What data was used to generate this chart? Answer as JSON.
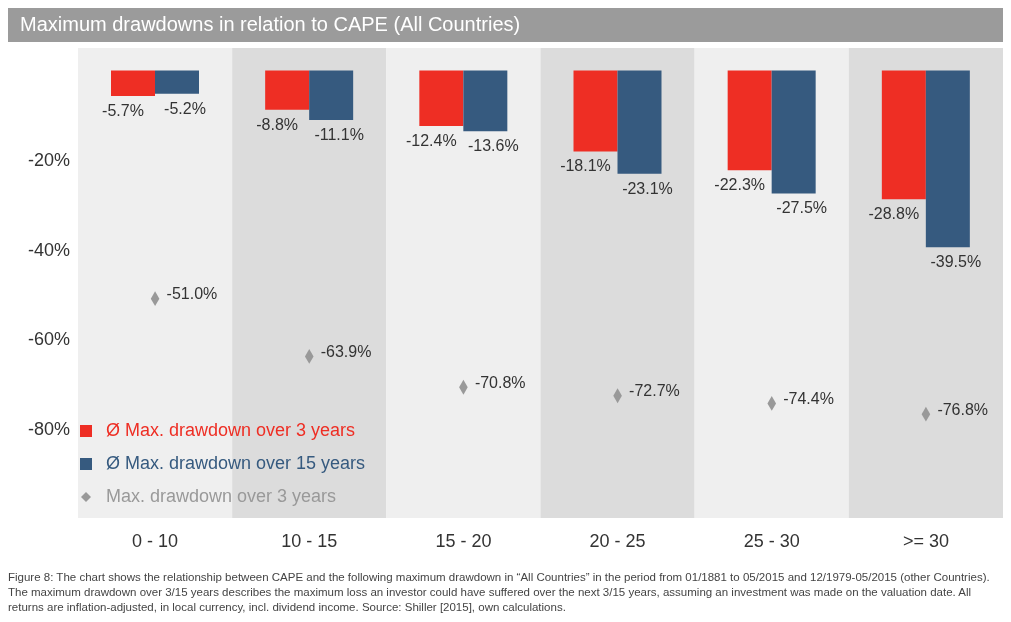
{
  "chart_data": {
    "type": "bar",
    "title": "Maximum drawdowns in relation to CAPE (All Countries)",
    "categories": [
      "0 - 10",
      "10 - 15",
      "15 - 20",
      "20 - 25",
      "25 - 30",
      ">= 30"
    ],
    "series": [
      {
        "name": "Ø Max. drawdown over 3 years",
        "color": "#ee2e24",
        "values": [
          -5.7,
          -8.8,
          -12.4,
          -18.1,
          -22.3,
          -28.8
        ],
        "value_labels": [
          "-5.7%",
          "-8.8%",
          "-12.4%",
          "-18.1%",
          "-22.3%",
          "-28.8%"
        ]
      },
      {
        "name": "Ø Max. drawdown over 15 years",
        "color": "#365a7f",
        "values": [
          -5.2,
          -11.1,
          -13.6,
          -23.1,
          -27.5,
          -39.5
        ],
        "value_labels": [
          "-5.2%",
          "-11.1%",
          "-13.6%",
          "-23.1%",
          "-27.5%",
          "-39.5%"
        ]
      },
      {
        "name": "Max. drawdown over 3 years",
        "type": "scatter",
        "marker": "diamond",
        "color": "#999999",
        "x": [
          "0 - 10",
          "10 - 15",
          "15 - 20",
          "20 - 25",
          "25 - 30",
          ">= 30"
        ],
        "values": [
          -51.0,
          -63.9,
          -70.8,
          -72.7,
          -74.4,
          -76.8
        ],
        "value_labels": [
          "-51.0%",
          "-63.9%",
          "-70.8%",
          "-72.7%",
          "-74.4%",
          "-76.8%"
        ]
      }
    ],
    "ylim": [
      -100,
      5
    ],
    "yticks": [
      {
        "value": -20,
        "label": "-20%"
      },
      {
        "value": -40,
        "label": "-40%"
      },
      {
        "value": -60,
        "label": "-60%"
      },
      {
        "value": -80,
        "label": "-80%"
      }
    ],
    "bands": [
      {
        "axis": "x",
        "from": "0 - 10",
        "to": "0 - 10",
        "color": "#efefef"
      },
      {
        "axis": "x",
        "from": "10 - 15",
        "to": "10 - 15",
        "color": "#dcdcdc"
      },
      {
        "axis": "x",
        "from": "15 - 20",
        "to": "15 - 20",
        "color": "#efefef"
      },
      {
        "axis": "x",
        "from": "20 - 25",
        "to": "20 - 25",
        "color": "#dcdcdc"
      },
      {
        "axis": "x",
        "from": "25 - 30",
        "to": "25 - 30",
        "color": "#efefef"
      },
      {
        "axis": "x",
        "from": ">= 30",
        "to": ">= 30",
        "color": "#dcdcdc"
      }
    ],
    "grid": false,
    "legend": "bottom left",
    "annotations": [
      "Figure 8: The chart shows the relationship between CAPE and the following maximum drawdown in “All Countries” in the period from 01/1881 to 05/2015 and 12/1979-05/2015 (other Countries). The maximum drawdown over 3/15 years describes the maximum loss an investor could have suffered over the next 3/15 years, assuming an investment was made on the valuation date. All returns are inflation-adjusted, in local currency, incl. dividend income. Source: Shiller [2015], own calculations."
    ]
  }
}
